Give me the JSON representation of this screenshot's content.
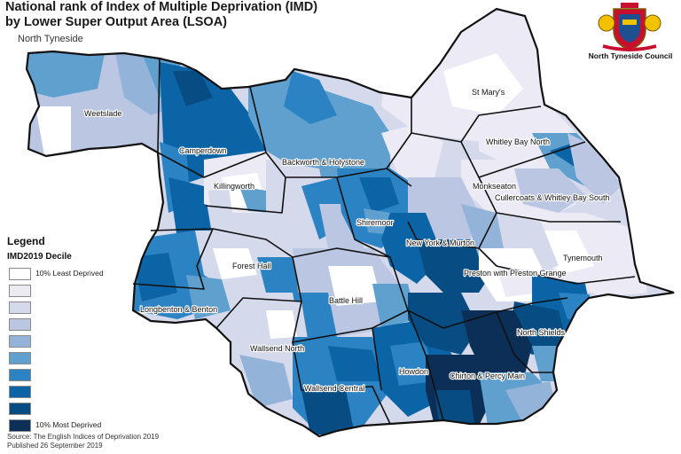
{
  "title": {
    "line1": "National rank of Index of Multiple Deprivation (IMD)",
    "line2": "by Lower Super Output Area (LSOA)"
  },
  "area_name": "North Tyneside",
  "logo": {
    "org_name": "North Tyneside Council",
    "icon": "coat-of-arms-icon"
  },
  "legend": {
    "title": "Legend",
    "subtitle": "IMD2019 Decile",
    "items": [
      {
        "decile": 10,
        "label": "10% Least Deprived",
        "color": "#ffffff"
      },
      {
        "decile": 9,
        "label": "",
        "color": "#eceaf4"
      },
      {
        "decile": 8,
        "label": "",
        "color": "#d5d9ec"
      },
      {
        "decile": 7,
        "label": "",
        "color": "#bac6e2"
      },
      {
        "decile": 6,
        "label": "",
        "color": "#94b3d9"
      },
      {
        "decile": 5,
        "label": "",
        "color": "#5fa0cf"
      },
      {
        "decile": 4,
        "label": "",
        "color": "#2b83c3"
      },
      {
        "decile": 3,
        "label": "",
        "color": "#0a64a5"
      },
      {
        "decile": 2,
        "label": "",
        "color": "#074d84"
      },
      {
        "decile": 1,
        "label": "10% Most Deprived",
        "color": "#0b2f57"
      }
    ]
  },
  "wards": [
    "St Mary's",
    "Weetslade",
    "Whitley Bay North",
    "Camperdown",
    "Backworth & Holystone",
    "Monkseaton",
    "Killingworth",
    "Cullercoats & Whitley Bay South",
    "Shiremoor",
    "New York & Murton",
    "Tynemouth",
    "Forest Hall",
    "Preston with Preston Grange",
    "Battle Hill",
    "Longbenton & Benton",
    "North Shields",
    "Wallsend North",
    "Howdon",
    "Chirton & Percy Main",
    "Wallsend Central"
  ],
  "source": {
    "line1": "Source: The English Indices of Deprivation 2019",
    "line2": "Published 26 September 2019"
  }
}
